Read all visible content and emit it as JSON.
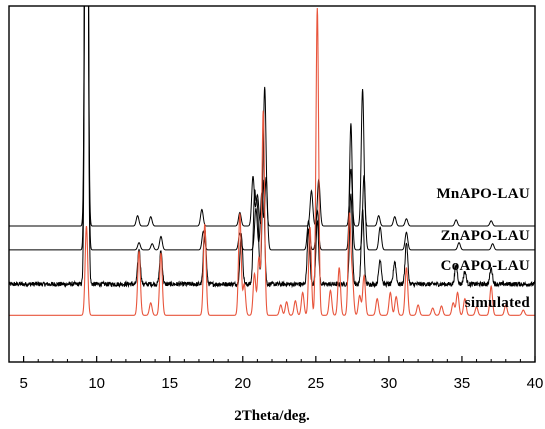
{
  "chart_data": {
    "type": "line",
    "title": "",
    "xlabel": "2Theta/deg.",
    "ylabel": "",
    "xlim": [
      4,
      40
    ],
    "xticks": [
      5,
      10,
      15,
      20,
      25,
      30,
      35,
      40
    ],
    "grid": false,
    "series": [
      {
        "name": "MnAPO-LAU",
        "color": "#000000",
        "baseline": 0.86,
        "peaks": [
          {
            "x": 9.3,
            "y": 9.0
          },
          {
            "x": 12.8,
            "y": 0.1
          },
          {
            "x": 13.7,
            "y": 0.09
          },
          {
            "x": 17.2,
            "y": 0.16
          },
          {
            "x": 19.8,
            "y": 0.13
          },
          {
            "x": 20.7,
            "y": 0.48
          },
          {
            "x": 21.0,
            "y": 0.3
          },
          {
            "x": 21.5,
            "y": 1.34
          },
          {
            "x": 24.7,
            "y": 0.34
          },
          {
            "x": 25.2,
            "y": 0.45
          },
          {
            "x": 27.4,
            "y": 0.55
          },
          {
            "x": 28.2,
            "y": 1.32
          },
          {
            "x": 29.3,
            "y": 0.1
          },
          {
            "x": 30.4,
            "y": 0.09
          },
          {
            "x": 31.2,
            "y": 0.07
          },
          {
            "x": 34.6,
            "y": 0.06
          },
          {
            "x": 37.0,
            "y": 0.05
          }
        ]
      },
      {
        "name": "ZnAPO-LAU",
        "color": "#000000",
        "baseline": 0.63,
        "peaks": [
          {
            "x": 9.3,
            "y": 9.0
          },
          {
            "x": 12.9,
            "y": 0.07
          },
          {
            "x": 13.8,
            "y": 0.06
          },
          {
            "x": 14.4,
            "y": 0.13
          },
          {
            "x": 17.3,
            "y": 0.18
          },
          {
            "x": 19.8,
            "y": 0.16
          },
          {
            "x": 20.9,
            "y": 0.4
          },
          {
            "x": 21.3,
            "y": 0.55
          },
          {
            "x": 21.6,
            "y": 0.7
          },
          {
            "x": 24.5,
            "y": 0.28
          },
          {
            "x": 25.1,
            "y": 0.38
          },
          {
            "x": 27.4,
            "y": 1.22
          },
          {
            "x": 28.3,
            "y": 0.72
          },
          {
            "x": 29.4,
            "y": 0.22
          },
          {
            "x": 31.2,
            "y": 0.17
          },
          {
            "x": 34.8,
            "y": 0.07
          },
          {
            "x": 37.1,
            "y": 0.06
          }
        ]
      },
      {
        "name": "CoAPO-LAU",
        "color": "#000000",
        "baseline": 0.3,
        "noise": 0.045,
        "peaks": [
          {
            "x": 9.3,
            "y": 9.0
          },
          {
            "x": 12.9,
            "y": 0.34
          },
          {
            "x": 14.4,
            "y": 0.32
          },
          {
            "x": 17.4,
            "y": 0.55
          },
          {
            "x": 19.9,
            "y": 0.48
          },
          {
            "x": 20.8,
            "y": 0.82
          },
          {
            "x": 21.0,
            "y": 0.7
          },
          {
            "x": 21.4,
            "y": 1.0
          },
          {
            "x": 24.5,
            "y": 0.52
          },
          {
            "x": 25.1,
            "y": 0.62
          },
          {
            "x": 27.4,
            "y": 0.88
          },
          {
            "x": 28.2,
            "y": 0.72
          },
          {
            "x": 29.4,
            "y": 0.24
          },
          {
            "x": 30.4,
            "y": 0.22
          },
          {
            "x": 31.2,
            "y": 0.4
          },
          {
            "x": 34.6,
            "y": 0.18
          },
          {
            "x": 35.2,
            "y": 0.12
          },
          {
            "x": 37.0,
            "y": 0.15
          }
        ]
      },
      {
        "name": "simulated",
        "color": "#e8553c",
        "baseline": 0.0,
        "peaks": [
          {
            "x": 9.3,
            "y": 0.86
          },
          {
            "x": 12.9,
            "y": 0.62
          },
          {
            "x": 13.7,
            "y": 0.12
          },
          {
            "x": 14.4,
            "y": 0.6
          },
          {
            "x": 17.4,
            "y": 0.88
          },
          {
            "x": 19.8,
            "y": 0.98
          },
          {
            "x": 20.1,
            "y": 0.3
          },
          {
            "x": 20.8,
            "y": 0.4
          },
          {
            "x": 21.1,
            "y": 0.55
          },
          {
            "x": 21.4,
            "y": 1.97
          },
          {
            "x": 22.6,
            "y": 0.1
          },
          {
            "x": 23.0,
            "y": 0.13
          },
          {
            "x": 23.6,
            "y": 0.14
          },
          {
            "x": 24.1,
            "y": 0.22
          },
          {
            "x": 24.6,
            "y": 0.85
          },
          {
            "x": 25.1,
            "y": 2.96
          },
          {
            "x": 26.0,
            "y": 0.24
          },
          {
            "x": 26.6,
            "y": 0.46
          },
          {
            "x": 27.3,
            "y": 0.96
          },
          {
            "x": 27.5,
            "y": 0.34
          },
          {
            "x": 28.0,
            "y": 0.19
          },
          {
            "x": 28.3,
            "y": 0.38
          },
          {
            "x": 29.2,
            "y": 0.16
          },
          {
            "x": 30.1,
            "y": 0.22
          },
          {
            "x": 30.5,
            "y": 0.18
          },
          {
            "x": 31.2,
            "y": 0.46
          },
          {
            "x": 32.0,
            "y": 0.1
          },
          {
            "x": 33.0,
            "y": 0.07
          },
          {
            "x": 33.6,
            "y": 0.09
          },
          {
            "x": 34.4,
            "y": 0.12
          },
          {
            "x": 34.7,
            "y": 0.22
          },
          {
            "x": 35.2,
            "y": 0.16
          },
          {
            "x": 36.0,
            "y": 0.08
          },
          {
            "x": 37.0,
            "y": 0.28
          },
          {
            "x": 38.0,
            "y": 0.1
          },
          {
            "x": 39.2,
            "y": 0.05
          }
        ]
      }
    ],
    "ylim": [
      -0.45,
      2.98
    ]
  }
}
